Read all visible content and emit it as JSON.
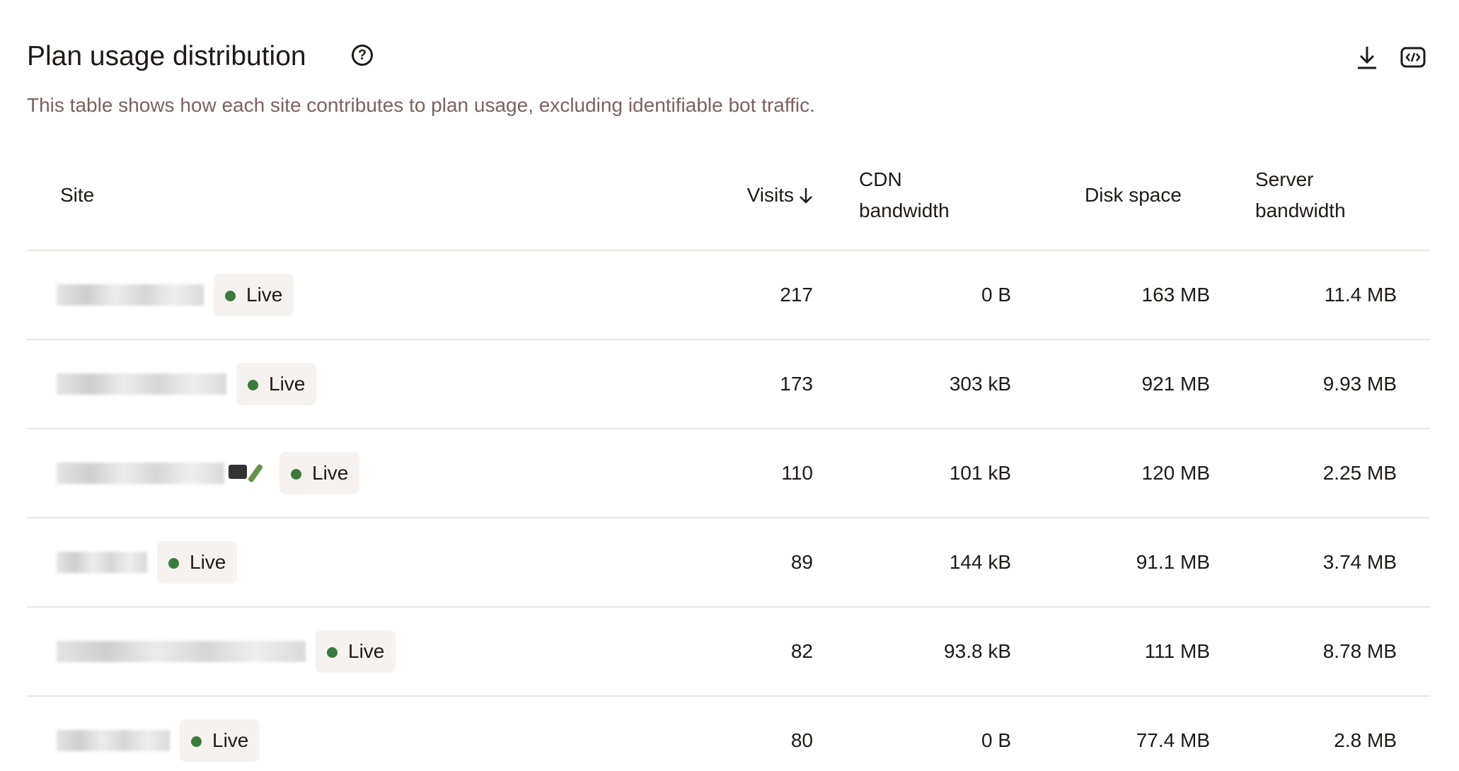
{
  "header": {
    "title": "Plan usage distribution",
    "description": "This table shows how each site contributes to plan usage, excluding identifiable bot traffic."
  },
  "table": {
    "columns": [
      "Site",
      "Visits",
      "CDN bandwidth",
      "Disk space",
      "Server bandwidth"
    ],
    "rows": [
      [
        "Live",
        "217",
        "0 B",
        "163 MB",
        "11.4 MB"
      ],
      [
        "Live",
        "173",
        "303 kB",
        "921 MB",
        "9.93 MB"
      ],
      [
        "Live",
        "110",
        "101 kB",
        "120 MB",
        "2.25 MB"
      ],
      [
        "Live",
        "89",
        "144 kB",
        "91.1 MB",
        "3.74 MB"
      ],
      [
        "Live",
        "82",
        "93.8 kB",
        "111 MB",
        "8.78 MB"
      ],
      [
        "Live",
        "80",
        "0 B",
        "77.4 MB",
        "2.8 MB"
      ]
    ]
  }
}
